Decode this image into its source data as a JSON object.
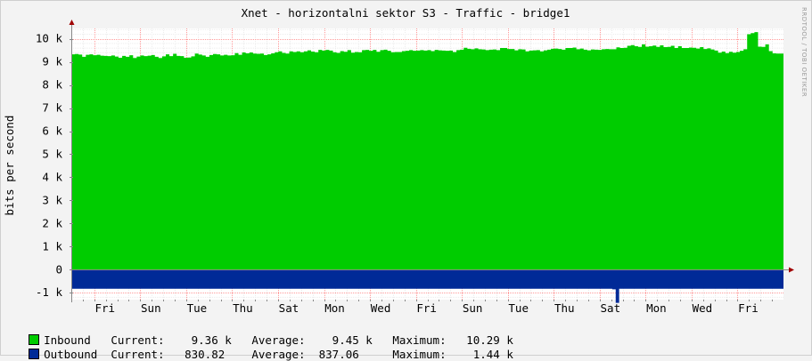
{
  "chart_data": {
    "type": "area",
    "title": "Xnet - horizontalni sektor S3 - Traffic - bridge1",
    "ylabel": "bits per second",
    "watermark": "RRDTOOL / TOBI OETIKER",
    "y_ticks": [
      {
        "value": -1000,
        "label": "-1 k"
      },
      {
        "value": 0,
        "label": "0"
      },
      {
        "value": 1000,
        "label": "1 k"
      },
      {
        "value": 2000,
        "label": "2 k"
      },
      {
        "value": 3000,
        "label": "3 k"
      },
      {
        "value": 4000,
        "label": "4 k"
      },
      {
        "value": 5000,
        "label": "5 k"
      },
      {
        "value": 6000,
        "label": "6 k"
      },
      {
        "value": 7000,
        "label": "7 k"
      },
      {
        "value": 8000,
        "label": "8 k"
      },
      {
        "value": 9000,
        "label": "9 k"
      },
      {
        "value": 10000,
        "label": "10 k"
      }
    ],
    "ylim": [
      -1300,
      10450
    ],
    "x_days": 15.5,
    "x_ticks": [
      {
        "day": 0.5,
        "label": "Fri"
      },
      {
        "day": 1.5,
        "label": "Sun"
      },
      {
        "day": 2.5,
        "label": "Tue"
      },
      {
        "day": 3.5,
        "label": "Thu"
      },
      {
        "day": 4.5,
        "label": "Sat"
      },
      {
        "day": 5.5,
        "label": "Mon"
      },
      {
        "day": 6.5,
        "label": "Wed"
      },
      {
        "day": 7.5,
        "label": "Fri"
      },
      {
        "day": 8.5,
        "label": "Sun"
      },
      {
        "day": 9.5,
        "label": "Tue"
      },
      {
        "day": 10.5,
        "label": "Thu"
      },
      {
        "day": 11.5,
        "label": "Sat"
      },
      {
        "day": 12.5,
        "label": "Mon"
      },
      {
        "day": 13.5,
        "label": "Wed"
      },
      {
        "day": 14.5,
        "label": "Fri"
      }
    ],
    "grid": true,
    "colors": {
      "inbound": "#00cc00",
      "outbound": "#002a97",
      "grid": "#ff9999",
      "axis": "#888888",
      "arrow": "#a00000"
    },
    "series": [
      {
        "name": "Inbound",
        "values": [
          9330,
          9340,
          9320,
          9220,
          9310,
          9330,
          9290,
          9310,
          9270,
          9260,
          9250,
          9280,
          9230,
          9180,
          9260,
          9220,
          9290,
          9170,
          9230,
          9280,
          9250,
          9270,
          9300,
          9220,
          9170,
          9240,
          9330,
          9250,
          9350,
          9260,
          9250,
          9180,
          9190,
          9240,
          9360,
          9320,
          9280,
          9220,
          9300,
          9340,
          9330,
          9280,
          9310,
          9280,
          9290,
          9380,
          9310,
          9410,
          9370,
          9410,
          9360,
          9350,
          9360,
          9300,
          9330,
          9370,
          9420,
          9460,
          9390,
          9360,
          9460,
          9430,
          9460,
          9420,
          9460,
          9500,
          9450,
          9420,
          9520,
          9490,
          9520,
          9490,
          9420,
          9390,
          9470,
          9440,
          9510,
          9400,
          9430,
          9420,
          9510,
          9520,
          9480,
          9520,
          9440,
          9510,
          9530,
          9480,
          9420,
          9430,
          9430,
          9470,
          9480,
          9510,
          9480,
          9490,
          9510,
          9490,
          9510,
          9470,
          9520,
          9500,
          9490,
          9480,
          9490,
          9430,
          9510,
          9530,
          9610,
          9570,
          9550,
          9590,
          9550,
          9540,
          9510,
          9530,
          9540,
          9510,
          9600,
          9600,
          9560,
          9560,
          9500,
          9550,
          9540,
          9460,
          9490,
          9500,
          9510,
          9460,
          9500,
          9530,
          9570,
          9580,
          9560,
          9530,
          9600,
          9600,
          9620,
          9550,
          9580,
          9530,
          9500,
          9540,
          9530,
          9520,
          9550,
          9560,
          9550,
          9550,
          9630,
          9600,
          9610,
          9700,
          9730,
          9680,
          9650,
          9760,
          9660,
          9680,
          9710,
          9650,
          9720,
          9640,
          9650,
          9700,
          9600,
          9680,
          9600,
          9600,
          9620,
          9610,
          9580,
          9640,
          9560,
          9590,
          9540,
          9490,
          9400,
          9450,
          9380,
          9440,
          9400,
          9430,
          9480,
          9550,
          10200,
          10250,
          10290,
          9660,
          9650,
          9760,
          9470,
          9370,
          9360,
          9360
        ],
        "current": "9.36 k",
        "average": "9.45 k",
        "maximum": "10.29 k"
      },
      {
        "name": "Outbound",
        "values": [
          -830,
          -830,
          -830,
          -830,
          -830,
          -830,
          -830,
          -830,
          -830,
          -830,
          -830,
          -830,
          -830,
          -830,
          -830,
          -830,
          -830,
          -830,
          -830,
          -830,
          -830,
          -830,
          -830,
          -830,
          -830,
          -830,
          -830,
          -830,
          -830,
          -830,
          -830,
          -830,
          -830,
          -830,
          -830,
          -830,
          -830,
          -830,
          -830,
          -830,
          -830,
          -830,
          -830,
          -830,
          -830,
          -830,
          -830,
          -830,
          -830,
          -830,
          -830,
          -830,
          -830,
          -830,
          -830,
          -830,
          -830,
          -830,
          -830,
          -830,
          -830,
          -830,
          -830,
          -830,
          -830,
          -830,
          -830,
          -830,
          -830,
          -830,
          -830,
          -830,
          -830,
          -830,
          -830,
          -830,
          -830,
          -830,
          -830,
          -830,
          -830,
          -830,
          -830,
          -830,
          -830,
          -830,
          -830,
          -830,
          -830,
          -830,
          -830,
          -830,
          -830,
          -830,
          -830,
          -830,
          -830,
          -830,
          -830,
          -830,
          -830,
          -830,
          -830,
          -830,
          -830,
          -830,
          -830,
          -830,
          -830,
          -830,
          -830,
          -830,
          -830,
          -830,
          -830,
          -830,
          -830,
          -830,
          -830,
          -830,
          -830,
          -830,
          -830,
          -830,
          -830,
          -830,
          -830,
          -830,
          -830,
          -830,
          -830,
          -830,
          -830,
          -830,
          -830,
          -830,
          -830,
          -830,
          -830,
          -830,
          -830,
          -830,
          -830,
          -830,
          -830,
          -830,
          -830,
          -830,
          -830,
          -830,
          -830,
          -830,
          -830,
          -830,
          -830,
          -830,
          -830,
          -830,
          -850,
          -1440,
          -830,
          -830,
          -830,
          -830,
          -830,
          -830,
          -830,
          -830,
          -830,
          -830,
          -830,
          -830,
          -830,
          -830,
          -830,
          -830,
          -830,
          -830,
          -830,
          -830,
          -830,
          -830,
          -830,
          -830,
          -830,
          -830,
          -830,
          -830,
          -830,
          -830,
          -830,
          -830,
          -830,
          -830,
          -830,
          -830,
          -830,
          -830,
          -830,
          -830,
          -830,
          -830,
          -830,
          -830,
          -830,
          -830,
          -830,
          -830
        ],
        "current": "830.82",
        "average": "837.06",
        "maximum": "1.44 k"
      }
    ]
  },
  "legend": {
    "inbound": "Inbound   Current:    9.36 k   Average:    9.45 k   Maximum:   10.29 k",
    "outbound": "Outbound  Current:   830.82    Average:  837.06     Maximum:    1.44 k"
  }
}
